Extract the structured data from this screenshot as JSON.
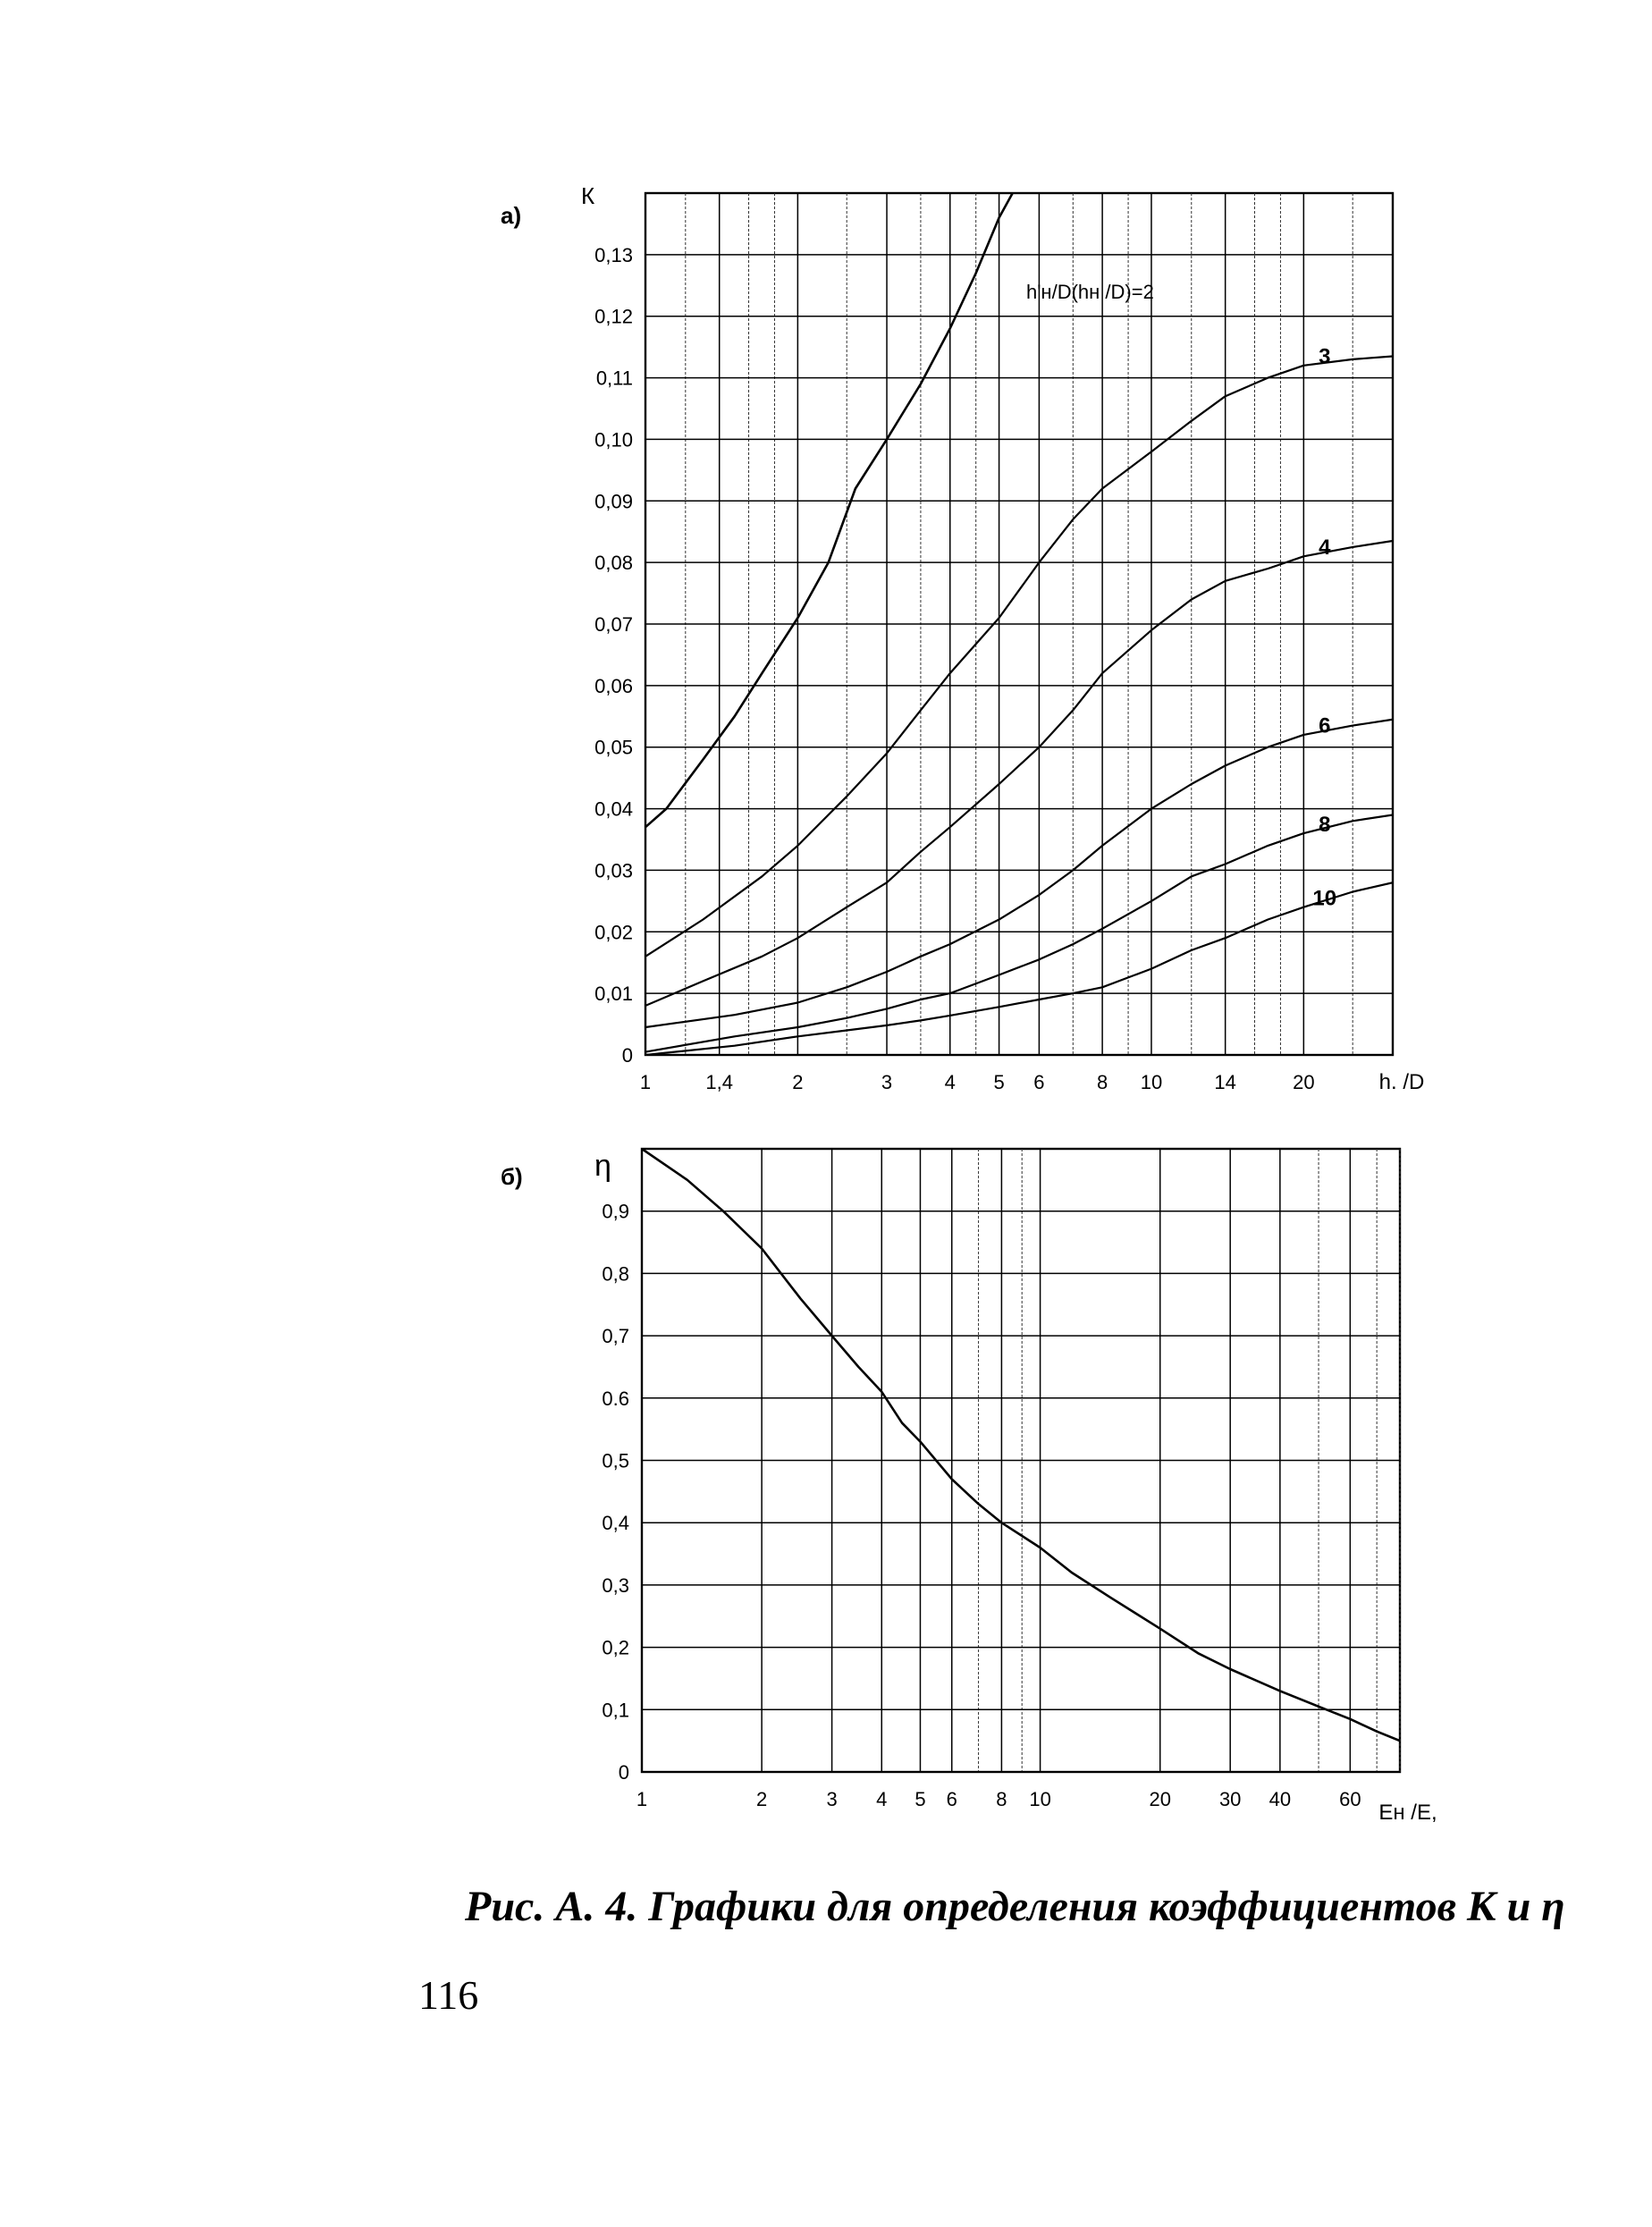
{
  "caption": "Рис. А. 4. Графики для определения коэффициентов К и η",
  "page_number": "116",
  "chart_data": [
    {
      "type": "line",
      "panel_label": "а)",
      "ylabel": "К",
      "xlabel": "h. /D",
      "xscale": "log",
      "xlim": [
        1,
        30
      ],
      "ylim": [
        0,
        0.14
      ],
      "grid": true,
      "x_ticks": [
        1,
        1.4,
        2,
        3,
        4,
        5,
        6,
        8,
        10,
        14,
        20
      ],
      "x_tick_labels": [
        "1",
        "1,4",
        "2",
        "3",
        "4",
        "5",
        "6",
        "8",
        "10",
        "14",
        "20"
      ],
      "x_minor_gridlines": [
        1.2,
        1.6,
        1.8,
        2.5,
        3.5,
        4.5,
        7,
        9,
        12,
        16,
        18,
        25
      ],
      "y_ticks": [
        0,
        0.01,
        0.02,
        0.03,
        0.04,
        0.05,
        0.06,
        0.07,
        0.08,
        0.09,
        0.1,
        0.11,
        0.12,
        0.13
      ],
      "y_tick_labels": [
        "0",
        "0,01",
        "0,02",
        "0,03",
        "0,04",
        "0,05",
        "0,06",
        "0,07",
        "0,08",
        "0,09",
        "0,10",
        "0,11",
        "0,12",
        "0,13"
      ],
      "annotations": [
        "h'н/D(hн /D)=2"
      ],
      "series": [
        {
          "name": "",
          "x": [
            1,
            1.1,
            1.3,
            1.5,
            1.7,
            2,
            2.3,
            2.6,
            3,
            3.5,
            4,
            4.5,
            5,
            5.4
          ],
          "y": [
            0.037,
            0.04,
            0.048,
            0.055,
            0.062,
            0.071,
            0.08,
            0.092,
            0.1,
            0.109,
            0.118,
            0.127,
            0.136,
            0.141
          ]
        },
        {
          "name": "3",
          "x": [
            1,
            1.3,
            1.7,
            2,
            2.5,
            3,
            3.5,
            4,
            5,
            6,
            7,
            8,
            10,
            12,
            14,
            17,
            20,
            25,
            30
          ],
          "y": [
            0.016,
            0.022,
            0.029,
            0.034,
            0.042,
            0.049,
            0.056,
            0.062,
            0.071,
            0.08,
            0.087,
            0.092,
            0.098,
            0.103,
            0.107,
            0.11,
            0.112,
            0.113,
            0.1135
          ]
        },
        {
          "name": "4",
          "x": [
            1,
            1.3,
            1.7,
            2,
            2.5,
            3,
            3.5,
            4,
            5,
            6,
            7,
            8,
            10,
            12,
            14,
            17,
            20,
            25,
            30
          ],
          "y": [
            0.008,
            0.012,
            0.016,
            0.019,
            0.024,
            0.028,
            0.033,
            0.037,
            0.044,
            0.05,
            0.056,
            0.062,
            0.069,
            0.074,
            0.077,
            0.079,
            0.081,
            0.0825,
            0.0835
          ]
        },
        {
          "name": "6",
          "x": [
            1,
            1.5,
            2,
            2.5,
            3,
            3.5,
            4,
            5,
            6,
            7,
            8,
            10,
            12,
            14,
            17,
            20,
            25,
            30
          ],
          "y": [
            0.0045,
            0.0065,
            0.0085,
            0.011,
            0.0135,
            0.016,
            0.018,
            0.022,
            0.026,
            0.03,
            0.034,
            0.04,
            0.044,
            0.047,
            0.05,
            0.052,
            0.0535,
            0.0545
          ]
        },
        {
          "name": "8",
          "x": [
            1,
            1.5,
            2,
            2.5,
            3,
            3.5,
            4,
            5,
            6,
            7,
            8,
            10,
            12,
            14,
            17,
            20,
            25,
            30
          ],
          "y": [
            0.0005,
            0.003,
            0.0045,
            0.006,
            0.0075,
            0.009,
            0.01,
            0.013,
            0.0155,
            0.018,
            0.0205,
            0.025,
            0.029,
            0.031,
            0.034,
            0.036,
            0.038,
            0.039
          ]
        },
        {
          "name": "10",
          "x": [
            1,
            1.5,
            2,
            2.5,
            3,
            3.5,
            4,
            5,
            6,
            7,
            8,
            10,
            12,
            14,
            17,
            20,
            25,
            30
          ],
          "y": [
            0,
            0.0015,
            0.003,
            0.004,
            0.0048,
            0.0056,
            0.0064,
            0.0078,
            0.009,
            0.01,
            0.011,
            0.014,
            0.017,
            0.019,
            0.022,
            0.024,
            0.0265,
            0.028
          ]
        }
      ]
    },
    {
      "type": "line",
      "panel_label": "б)",
      "ylabel": "η",
      "xlabel": "Eн /E,",
      "xscale": "log",
      "xlim": [
        1,
        80
      ],
      "ylim": [
        0,
        1.0
      ],
      "grid": true,
      "x_ticks": [
        1,
        2,
        3,
        4,
        5,
        6,
        8,
        10,
        20,
        30,
        40,
        60
      ],
      "x_tick_labels": [
        "1",
        "2",
        "3",
        "4",
        "5",
        "6",
        "8",
        "10",
        "20",
        "30",
        "40",
        "60"
      ],
      "x_minor_gridlines": [
        7,
        9,
        50,
        70,
        80
      ],
      "y_ticks": [
        0,
        0.1,
        0.2,
        0.3,
        0.4,
        0.5,
        0.6,
        0.7,
        0.8,
        0.9
      ],
      "y_tick_labels": [
        "0",
        "0,1",
        "0,2",
        "0,3",
        "0,4",
        "0,5",
        "0.6",
        "0,7",
        "0,8",
        "0,9"
      ],
      "series": [
        {
          "name": "",
          "x": [
            1,
            1.3,
            1.6,
            2,
            2.5,
            3,
            3.5,
            4,
            4.5,
            5,
            6,
            7,
            8,
            10,
            12,
            15,
            20,
            25,
            30,
            40,
            50,
            60,
            70,
            80
          ],
          "y": [
            1.0,
            0.95,
            0.9,
            0.84,
            0.76,
            0.7,
            0.65,
            0.61,
            0.56,
            0.53,
            0.47,
            0.43,
            0.4,
            0.36,
            0.32,
            0.28,
            0.23,
            0.19,
            0.165,
            0.13,
            0.105,
            0.085,
            0.065,
            0.05
          ]
        }
      ]
    }
  ]
}
